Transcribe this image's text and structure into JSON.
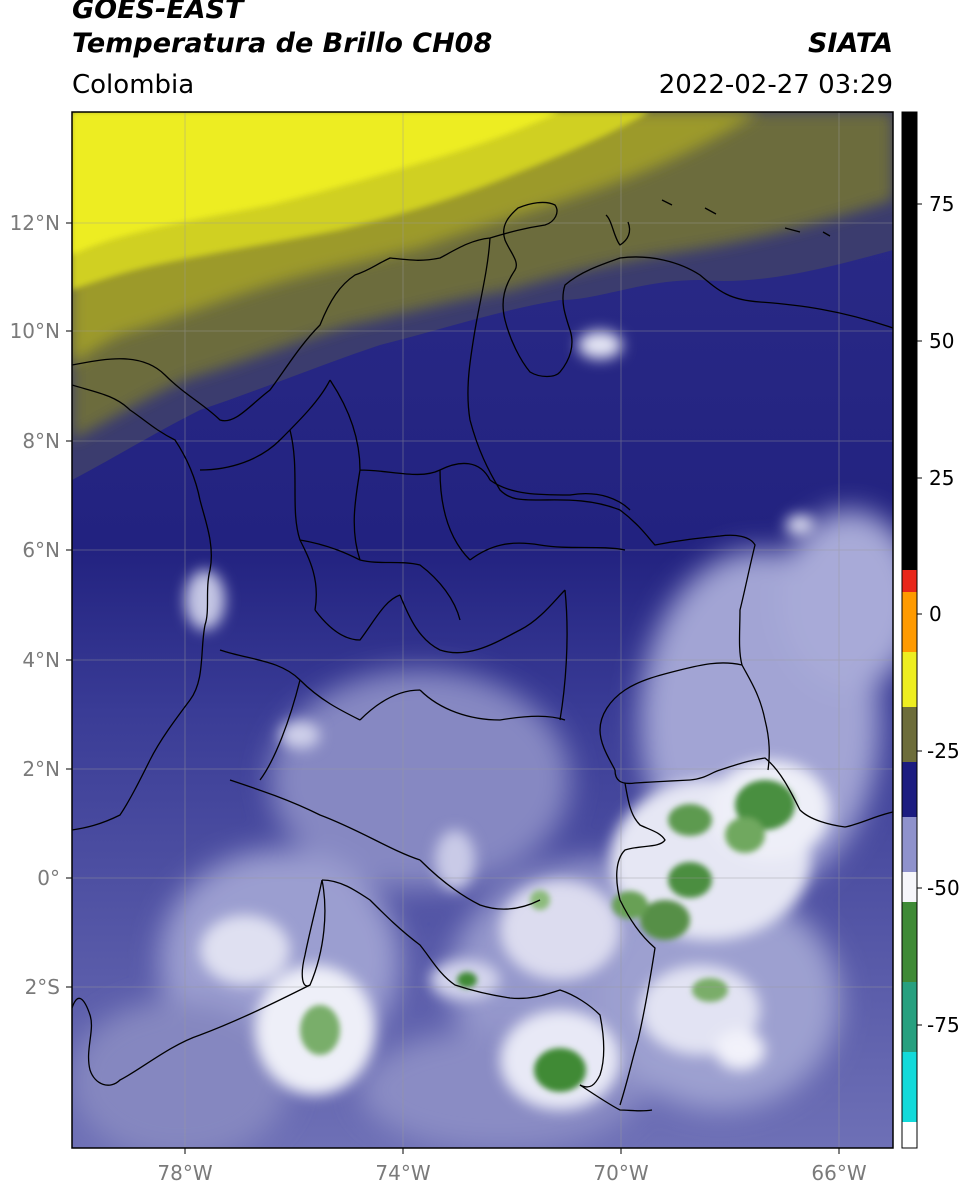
{
  "header": {
    "satellite": "GOES-EAST",
    "product": "Temperatura de Brillo CH08",
    "region": "Colombia",
    "agency": "SIATA",
    "datetime": "2022-02-27 03:29"
  },
  "map": {
    "lon_range": [
      -80,
      -65
    ],
    "lat_range": [
      -5,
      14
    ],
    "lat_ticks": [
      "12°N",
      "10°N",
      "8°N",
      "6°N",
      "4°N",
      "2°N",
      "0°",
      "2°S"
    ],
    "lon_ticks": [
      "78°W",
      "74°W",
      "70°W",
      "66°W"
    ],
    "gridlines": true
  },
  "colorbar": {
    "ticks": [
      "75",
      "50",
      "25",
      "0",
      "-25",
      "-50",
      "-75"
    ],
    "range": [
      -95,
      90
    ],
    "colors": {
      "black": "#000000",
      "red": "#e8261a",
      "orange": "#ff9a00",
      "yellow": "#eeee20",
      "olive": "#6d6d3a",
      "navy": "#1c1c80",
      "lavender": "#8f92cc",
      "white": "#f6f6fa",
      "green": "#3f8a36",
      "teal": "#27a07f",
      "cyan": "#12dada"
    }
  }
}
